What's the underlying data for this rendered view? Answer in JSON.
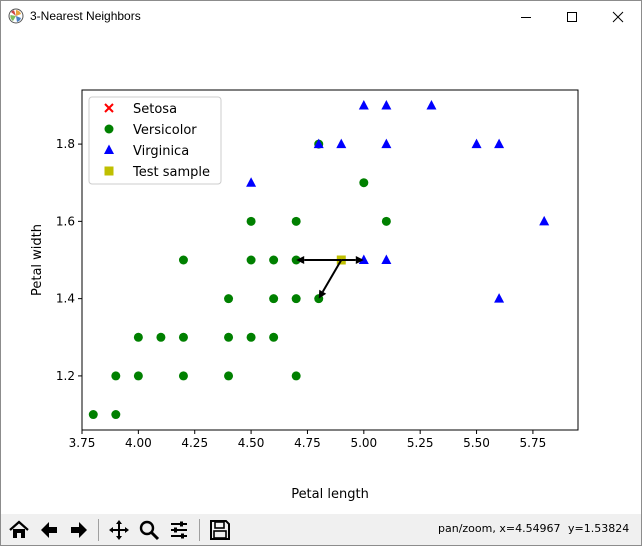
{
  "window": {
    "title": "3-Nearest Neighbors",
    "app_icon": "matplotlib-icon",
    "controls": [
      "minimize-icon",
      "maximize-icon",
      "close-icon"
    ]
  },
  "toolbar": {
    "buttons": [
      "home-icon",
      "back-icon",
      "forward-icon",
      "pan-icon",
      "zoom-icon",
      "configure-subplots-icon",
      "save-icon"
    ],
    "status_mode": "pan/zoom, x=4.54967",
    "status_y": "y=1.53824"
  },
  "colors": {
    "setosa": "#ff0000",
    "versicolor": "#008000",
    "virginica": "#0000ff",
    "test_sample": "#bfbf00"
  },
  "chart_data": {
    "type": "scatter",
    "title": "",
    "xlabel": "Petal length",
    "ylabel": "Petal width",
    "xlim": [
      3.75,
      5.95
    ],
    "ylim": [
      1.06,
      1.94
    ],
    "xticks": [
      "3.75",
      "4.00",
      "4.25",
      "4.50",
      "4.75",
      "5.00",
      "5.25",
      "5.50",
      "5.75"
    ],
    "yticks": [
      "1.2",
      "1.4",
      "1.6",
      "1.8"
    ],
    "grid": false,
    "legend_position": "upper-left",
    "series": [
      {
        "name": "Setosa",
        "marker": "x",
        "color": "#ff0000",
        "points": []
      },
      {
        "name": "Versicolor",
        "marker": "circle",
        "color": "#008000",
        "points": [
          [
            3.8,
            1.1
          ],
          [
            3.9,
            1.1
          ],
          [
            3.9,
            1.2
          ],
          [
            4.0,
            1.2
          ],
          [
            4.0,
            1.3
          ],
          [
            4.1,
            1.3
          ],
          [
            4.2,
            1.2
          ],
          [
            4.2,
            1.3
          ],
          [
            4.2,
            1.5
          ],
          [
            4.4,
            1.2
          ],
          [
            4.4,
            1.3
          ],
          [
            4.4,
            1.4
          ],
          [
            4.5,
            1.3
          ],
          [
            4.5,
            1.5
          ],
          [
            4.5,
            1.6
          ],
          [
            4.6,
            1.3
          ],
          [
            4.6,
            1.4
          ],
          [
            4.6,
            1.5
          ],
          [
            4.7,
            1.2
          ],
          [
            4.7,
            1.4
          ],
          [
            4.7,
            1.5
          ],
          [
            4.7,
            1.6
          ],
          [
            4.8,
            1.4
          ],
          [
            4.8,
            1.8
          ],
          [
            5.0,
            1.7
          ],
          [
            5.1,
            1.6
          ]
        ]
      },
      {
        "name": "Virginica",
        "marker": "triangle",
        "color": "#0000ff",
        "points": [
          [
            4.5,
            1.7
          ],
          [
            4.8,
            1.8
          ],
          [
            4.9,
            1.8
          ],
          [
            5.0,
            1.5
          ],
          [
            5.0,
            1.9
          ],
          [
            5.1,
            1.5
          ],
          [
            5.1,
            1.8
          ],
          [
            5.1,
            1.9
          ],
          [
            5.3,
            1.9
          ],
          [
            5.5,
            1.8
          ],
          [
            5.6,
            1.4
          ],
          [
            5.6,
            1.8
          ],
          [
            5.8,
            1.6
          ]
        ]
      },
      {
        "name": "Test sample",
        "marker": "square",
        "color": "#bfbf00",
        "points": [
          [
            4.9,
            1.5
          ]
        ]
      }
    ],
    "arrows": [
      {
        "from": [
          4.9,
          1.5
        ],
        "to": [
          4.7,
          1.5
        ]
      },
      {
        "from": [
          4.9,
          1.5
        ],
        "to": [
          5.0,
          1.5
        ]
      },
      {
        "from": [
          4.9,
          1.5
        ],
        "to": [
          4.8,
          1.4
        ]
      }
    ]
  }
}
